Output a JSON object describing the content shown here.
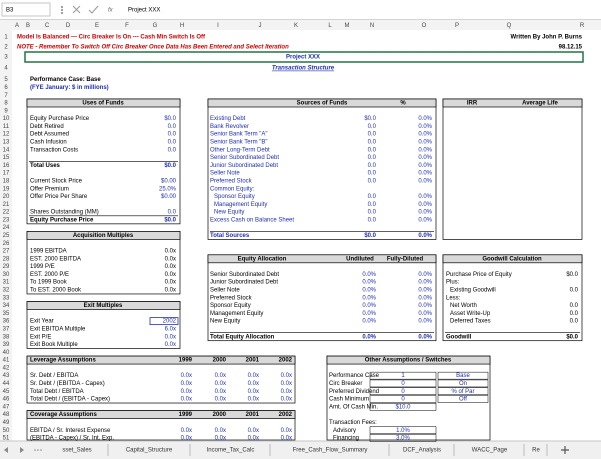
{
  "formula_bar": {
    "name_box": "B3",
    "fx": "fx",
    "content": "Project XXX"
  },
  "columns": [
    "A",
    "B",
    "C",
    "D",
    "E",
    "F",
    "G",
    "H",
    "I",
    "J",
    "K",
    "L",
    "M",
    "N",
    "O",
    "P",
    "Q",
    "R"
  ],
  "rows": [
    "1",
    "2",
    "3",
    "4",
    "5",
    "6",
    "7",
    "8",
    "9",
    "10",
    "11",
    "12",
    "13",
    "14",
    "15",
    "16",
    "17",
    "18",
    "19",
    "20",
    "21",
    "22",
    "23",
    "24",
    "25",
    "26",
    "27",
    "28",
    "29",
    "30",
    "31",
    "32",
    "33",
    "34",
    "35",
    "36",
    "37",
    "38",
    "39",
    "40",
    "41",
    "42",
    "43",
    "44",
    "45",
    "46",
    "47",
    "48",
    "49",
    "50",
    "51"
  ],
  "sheet": {
    "status": "Model Is Balanced --- Circ Breaker Is On --- Cash Min Switch Is Off",
    "author": "Written By John P. Burns",
    "note": "NOTE - Remember To Switch Off Circ Breaker Once Data Has Been Entered and Select Iteration",
    "date": "98.12.15",
    "title": "Project XXX",
    "subtitle": "Transaction Structure",
    "performance_case": "Performance Case: Base",
    "fye": "(FYE January: $ in millions)"
  },
  "uses_of_funds": {
    "title": "Uses of Funds",
    "rows": [
      [
        "Equity Purchase Price",
        "$0.0"
      ],
      [
        "Debt Retired",
        "0.0"
      ],
      [
        "Debt Assumed",
        "0.0"
      ],
      [
        "Cash Infusion",
        "0.0"
      ],
      [
        "Transaction Costs",
        "0.0"
      ],
      [
        "Total Uses",
        "$0.0"
      ],
      [
        "Current Stock Price",
        "$0.00"
      ],
      [
        "Offer Premium",
        "25.0%"
      ],
      [
        "Offer Price Per Share",
        "$0.00"
      ],
      [
        "Shares Outstanding (MM)",
        "0.0"
      ],
      [
        "Equity Purchase Price",
        "$0.0"
      ]
    ]
  },
  "acquisition_multiples": {
    "title": "Acquisition Multiples",
    "rows": [
      [
        "1999 EBITDA",
        "0.0x"
      ],
      [
        "EST. 2000 EBITDA",
        "0.0x"
      ],
      [
        "1999 P/E",
        "0.0x"
      ],
      [
        "EST. 2000 P/E",
        "0.0x"
      ],
      [
        "To 1999 Book",
        "0.0x"
      ],
      [
        "To EST. 2000 Book",
        "0.0x"
      ]
    ]
  },
  "exit_multiples": {
    "title": "Exit Multiples",
    "rows": [
      [
        "Exit Year",
        "2002"
      ],
      [
        "Exit EBITDA Multiple",
        "6.0x"
      ],
      [
        "Exit P/E",
        "0.0x"
      ],
      [
        "Exit Book Multiple",
        "0.0x"
      ]
    ]
  },
  "leverage_assumptions": {
    "header": [
      "Leverage Assumptions",
      "1999",
      "2000",
      "2001",
      "2002"
    ],
    "rows": [
      [
        "Sr. Debt / EBITDA",
        "0.0x",
        "0.0x",
        "0.0x",
        "0.0x"
      ],
      [
        "Sr. Debt / (EBITDA - Capex)",
        "0.0x",
        "0.0x",
        "0.0x",
        "0.0x"
      ],
      [
        "Total Debt / EBITDA",
        "0.0x",
        "0.0x",
        "0.0x",
        "0.0x"
      ],
      [
        "Total Debt / (EBITDA - Capex)",
        "0.0x",
        "0.0x",
        "0.0x",
        "0.0x"
      ]
    ]
  },
  "coverage_assumptions": {
    "header": [
      "Coverage Assumptions",
      "1999",
      "2000",
      "2001",
      "2002"
    ],
    "rows": [
      [
        "EBITDA / Sr. Interest Expense",
        "0.0x",
        "0.0x",
        "0.0x",
        "0.0x"
      ],
      [
        "(EBITDA - Capex) / Sr. Int. Exp.",
        "0.0x",
        "0.0x",
        "0.0x",
        "0.0x"
      ]
    ]
  },
  "sources_of_funds": {
    "header": [
      "Sources of Funds",
      "%"
    ],
    "rows": [
      [
        "Existing Debt",
        "$0.0",
        "0.0%"
      ],
      [
        "Bank Revolver",
        "0.0",
        "0.0%"
      ],
      [
        "Senior Bank Term \"A\"",
        "0.0",
        "0.0%"
      ],
      [
        "Senior Bank Term \"B\"",
        "0.0",
        "0.0%"
      ],
      [
        "Other Long-Term Debt",
        "0.0",
        "0.0%"
      ],
      [
        "Senior Subordinated Debt",
        "0.0",
        "0.0%"
      ],
      [
        "Junior Subordinated Debt",
        "0.0",
        "0.0%"
      ],
      [
        "Seller Note",
        "0.0",
        "0.0%"
      ],
      [
        "Preferred Stock",
        "0.0",
        "0.0%"
      ],
      [
        "Common Equity:"
      ],
      [
        "Sponsor Equity",
        "0.0",
        "0.0%"
      ],
      [
        "Management Equity",
        "0.0",
        "0.0%"
      ],
      [
        "New Equity",
        "0.0",
        "0.0%"
      ],
      [
        "Excess Cash on Balance Sheet",
        "0.0",
        "0.0%"
      ],
      [
        "Total Sources",
        "$0.0",
        "0.0%"
      ]
    ]
  },
  "equity_allocation": {
    "header": [
      "Equity Allocation",
      "Undiluted",
      "Fully-Diluted"
    ],
    "rows": [
      [
        "Senior Subordinated Debt",
        "0.0%",
        "0.0%"
      ],
      [
        "Junior Subordinated Debt",
        "0.0%",
        "0.0%"
      ],
      [
        "Seller Note",
        "0.0%",
        "0.0%"
      ],
      [
        "Preferred Stock",
        "0.0%",
        "0.0%"
      ],
      [
        "Sponsor Equity",
        "0.0%",
        "0.0%"
      ],
      [
        "Management Equity",
        "0.0%",
        "0.0%"
      ],
      [
        "New Equity",
        "0.0%",
        "0.0%"
      ],
      [
        "Total Equity Allocation",
        "0.0%",
        "0.0%"
      ]
    ]
  },
  "irr": {
    "header": [
      "IRR",
      "Average Life"
    ]
  },
  "goodwill_calculation": {
    "title": "Goodwill Calculation",
    "rows": [
      [
        "Purchase Price of Equity",
        "$0.0"
      ],
      [
        "Plus:"
      ],
      [
        "Existing Goodwill",
        "0.0"
      ],
      [
        "Less:"
      ],
      [
        "Net Worth",
        "0.0"
      ],
      [
        "Asset Write-Up",
        "0.0"
      ],
      [
        "Deferred Taxes",
        "0.0"
      ],
      [
        "Goodwill",
        "$0.0"
      ]
    ]
  },
  "other_assumptions": {
    "title": "Other Assumptions / Switches",
    "rows": [
      [
        "Performance Case",
        "1",
        "Base"
      ],
      [
        "Circ Breaker",
        "0",
        "On"
      ],
      [
        "Preferred Dividend",
        "0",
        "% of Par"
      ],
      [
        "Cash Minimum",
        "0",
        "Off"
      ],
      [
        "Amt. Of Cash Min.",
        "$10.0"
      ],
      [
        "Transaction Fees:"
      ],
      [
        "Advisory",
        "1.0%"
      ],
      [
        "Financing",
        "3.0%"
      ]
    ]
  },
  "tabs": [
    "sset_Sales",
    "Capital_Structure",
    "Income_Tax_Calc",
    "Free_Cash_Flow_Summary",
    "DCF_Analysis",
    "WACC_Page",
    "Re"
  ]
}
